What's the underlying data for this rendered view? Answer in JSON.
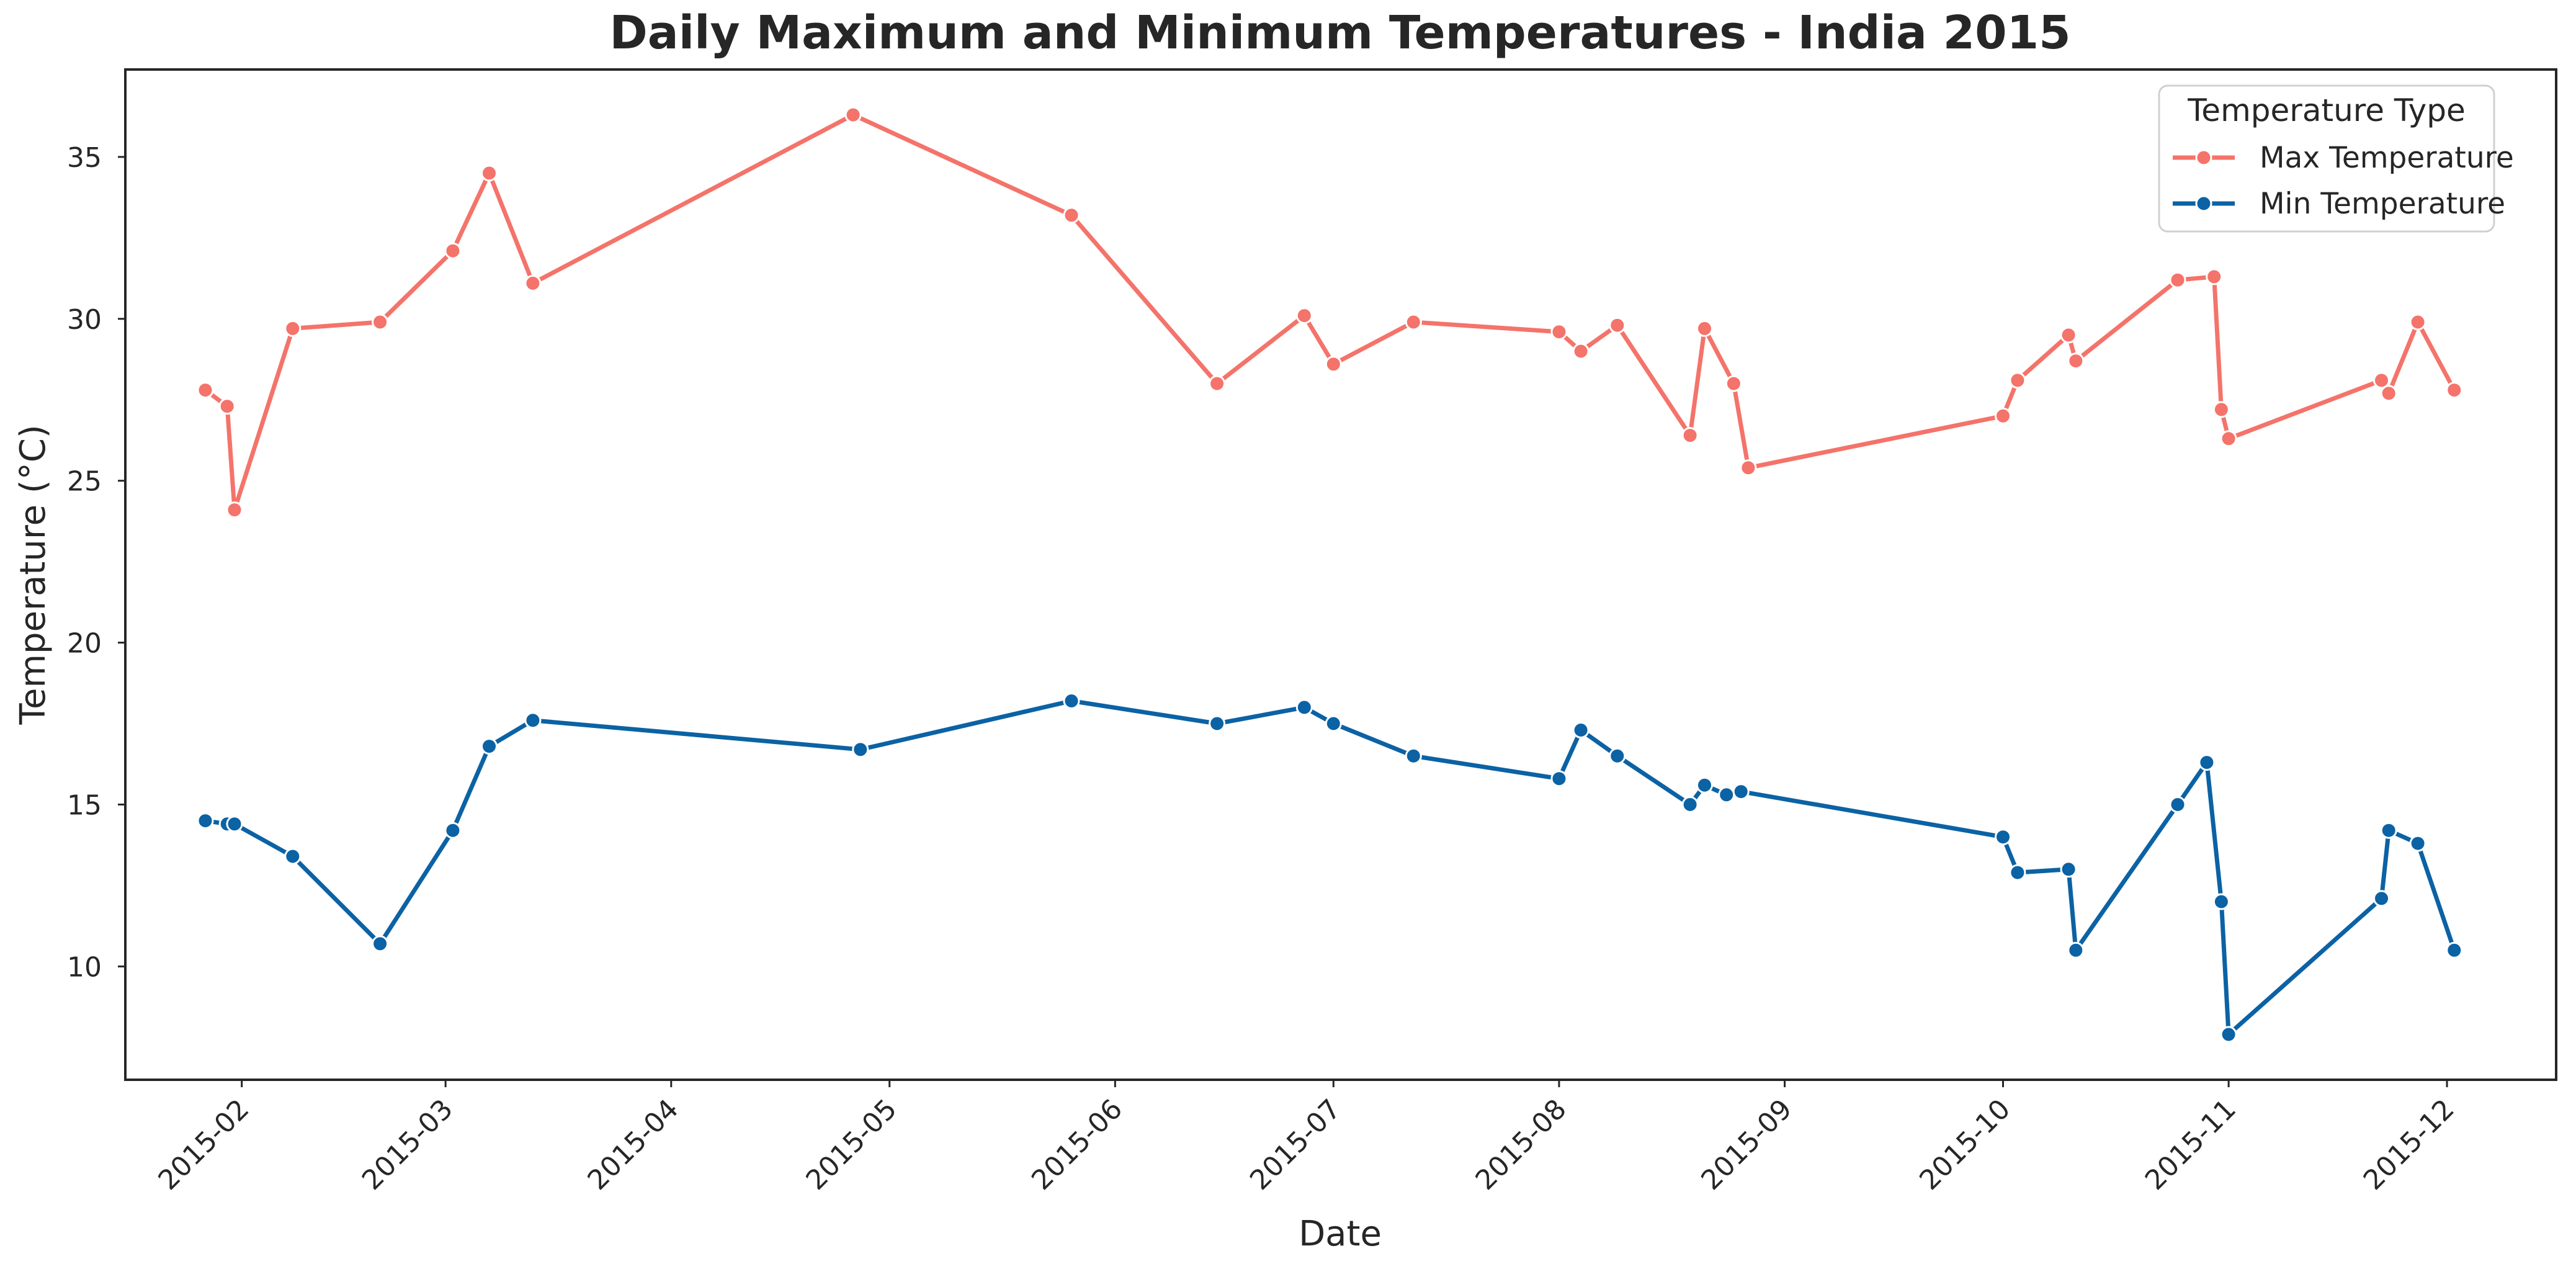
{
  "chart_data": {
    "type": "line",
    "title": "Daily Maximum and Minimum Temperatures - India 2015",
    "xlabel": "Date",
    "ylabel": "Temperature (°C)",
    "xlim": [
      "2015-01-16",
      "2015-12-16"
    ],
    "ylim": [
      6.5,
      37.7
    ],
    "x_ticks": [
      "2015-02",
      "2015-03",
      "2015-04",
      "2015-05",
      "2015-06",
      "2015-07",
      "2015-08",
      "2015-09",
      "2015-10",
      "2015-11",
      "2015-12"
    ],
    "y_ticks": [
      10,
      15,
      20,
      25,
      30,
      35
    ],
    "grid": false,
    "legend": {
      "title": "Temperature Type",
      "placement": "top-right"
    },
    "series": [
      {
        "name": "Max Temperature",
        "color": "#f4736a",
        "x": [
          "2015-01-27",
          "2015-01-30",
          "2015-01-31",
          "2015-02-08",
          "2015-02-20",
          "2015-03-02",
          "2015-03-07",
          "2015-03-13",
          "2015-04-26",
          "2015-05-26",
          "2015-06-15",
          "2015-06-27",
          "2015-07-01",
          "2015-07-12",
          "2015-08-01",
          "2015-08-04",
          "2015-08-09",
          "2015-08-19",
          "2015-08-21",
          "2015-08-25",
          "2015-08-27",
          "2015-10-01",
          "2015-10-03",
          "2015-10-10",
          "2015-10-11",
          "2015-10-25",
          "2015-10-30",
          "2015-10-31",
          "2015-11-01",
          "2015-11-22",
          "2015-11-23",
          "2015-11-27",
          "2015-12-02"
        ],
        "values": [
          27.8,
          27.3,
          24.1,
          29.7,
          29.9,
          32.1,
          34.5,
          31.1,
          36.3,
          33.2,
          28.0,
          30.1,
          28.6,
          29.9,
          29.6,
          29.0,
          29.8,
          26.4,
          29.7,
          28.0,
          25.4,
          27.0,
          28.1,
          29.5,
          28.7,
          31.2,
          31.3,
          27.2,
          26.3,
          28.1,
          27.7,
          29.9,
          27.8
        ]
      },
      {
        "name": "Min Temperature",
        "color": "#0b62a4",
        "x": [
          "2015-01-27",
          "2015-01-30",
          "2015-01-31",
          "2015-02-08",
          "2015-02-20",
          "2015-03-02",
          "2015-03-07",
          "2015-03-13",
          "2015-04-27",
          "2015-05-26",
          "2015-06-15",
          "2015-06-27",
          "2015-07-01",
          "2015-07-12",
          "2015-08-01",
          "2015-08-04",
          "2015-08-09",
          "2015-08-19",
          "2015-08-21",
          "2015-08-24",
          "2015-08-26",
          "2015-10-01",
          "2015-10-03",
          "2015-10-10",
          "2015-10-11",
          "2015-10-25",
          "2015-10-29",
          "2015-10-31",
          "2015-11-01",
          "2015-11-22",
          "2015-11-23",
          "2015-11-27",
          "2015-12-02"
        ],
        "values": [
          14.5,
          14.4,
          14.4,
          13.4,
          10.7,
          14.2,
          16.8,
          17.6,
          16.7,
          18.2,
          17.5,
          18.0,
          17.5,
          16.5,
          15.8,
          17.3,
          16.5,
          15.0,
          15.6,
          15.3,
          15.4,
          14.0,
          12.9,
          13.0,
          10.5,
          15.0,
          16.3,
          12.0,
          7.9,
          12.1,
          14.2,
          13.8,
          10.5
        ]
      }
    ]
  }
}
